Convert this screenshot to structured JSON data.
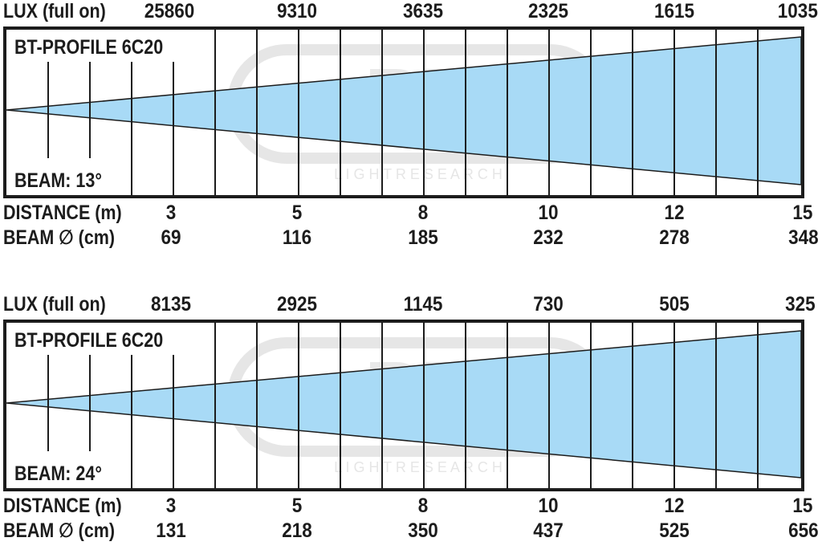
{
  "panels": [
    {
      "lux_label": "LUX (full on)",
      "lux": [
        "25860",
        "9310",
        "3635",
        "2325",
        "1615",
        "1035"
      ],
      "model": "BT-PROFILE 6C20",
      "beam_label": "BEAM: 13°",
      "distance_label": "DISTANCE (m)",
      "distances": [
        "3",
        "5",
        "8",
        "10",
        "12",
        "15"
      ],
      "diameter_label": "BEAM ∅ (cm)",
      "diameters": [
        "69",
        "116",
        "185",
        "232",
        "278",
        "348"
      ],
      "beam_angle_deg": 13
    },
    {
      "lux_label": "LUX (full on)",
      "lux": [
        "8135",
        "2925",
        "1145",
        "730",
        "505",
        "325"
      ],
      "model": "BT-PROFILE 6C20",
      "beam_label": "BEAM: 24°",
      "distance_label": "DISTANCE (m)",
      "distances": [
        "3",
        "5",
        "8",
        "10",
        "12",
        "15"
      ],
      "diameter_label": "BEAM ∅ (cm)",
      "diameters": [
        "131",
        "218",
        "350",
        "437",
        "525",
        "656"
      ],
      "beam_angle_deg": 24
    }
  ],
  "colors": {
    "beam": "#a8daf6",
    "line": "#1c1c1c",
    "watermark": "#e6e6e6"
  },
  "watermark": {
    "logo": "BT",
    "text": "L I G H T   R E S E A R C H"
  }
}
